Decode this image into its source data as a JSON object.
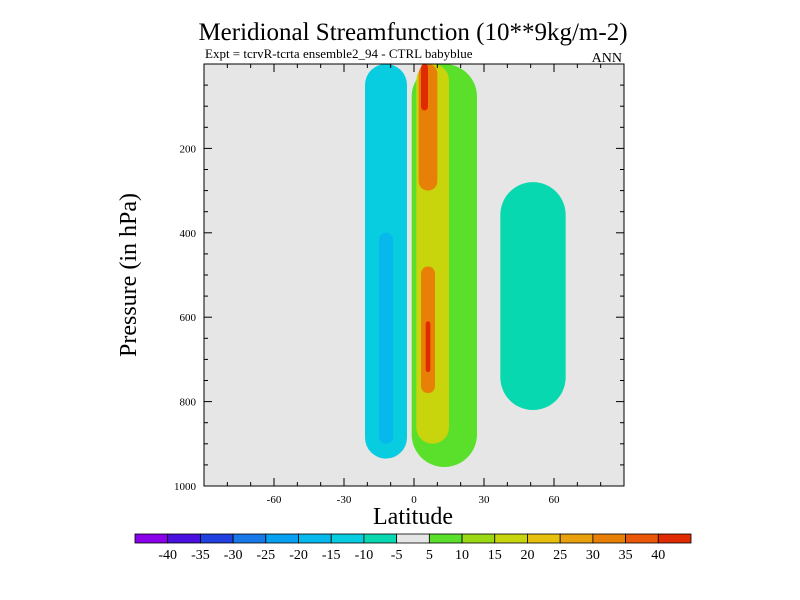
{
  "chart_data": {
    "type": "contour",
    "title": "Meridional Streamfunction (10**9kg/m-2)",
    "subtitle": "Expt = tcrvR-tcrta ensemble2_94 - CTRL babyblue",
    "period_label": "ANN",
    "xlabel": "Latitude",
    "ylabel": "Pressure (in hPa)",
    "xlim": [
      -90,
      90
    ],
    "ylim": [
      1000,
      0
    ],
    "x_ticks": [
      -60,
      -30,
      0,
      30,
      60
    ],
    "y_ticks": [
      200,
      400,
      600,
      800,
      1000
    ],
    "x_tick_labels": [
      "-60",
      "-30",
      "0",
      "30",
      "60"
    ],
    "y_tick_labels": [
      "200",
      "400",
      "600",
      "800",
      "1000"
    ],
    "colorbar": {
      "boundaries": [
        -45,
        -40,
        -35,
        -30,
        -25,
        -20,
        -15,
        -10,
        -5,
        5,
        10,
        15,
        20,
        25,
        30,
        35,
        40,
        45
      ],
      "labels": [
        "-40",
        "-35",
        "-30",
        "-25",
        "-20",
        "-15",
        "-10",
        "-5",
        "5",
        "10",
        "15",
        "20",
        "25",
        "30",
        "35",
        "40"
      ],
      "colors": [
        "#8a00e8",
        "#4a10e0",
        "#2040e0",
        "#1878e8",
        "#08a0f0",
        "#06b8ec",
        "#08cce0",
        "#08d8b0",
        "#e6e6e6",
        "#5ae02a",
        "#9ad814",
        "#c8d40c",
        "#e6c00c",
        "#e8a00c",
        "#e88008",
        "#e85808",
        "#e02a00"
      ]
    },
    "cells": [
      {
        "name": "southern-negative-cell",
        "level": -15,
        "lat": [
          -21,
          -3
        ],
        "p": [
          0,
          935
        ]
      },
      {
        "name": "southern-negative-core",
        "level": -20,
        "lat": [
          -15,
          -9
        ],
        "p": [
          400,
          900
        ]
      },
      {
        "name": "northern-negative-cell",
        "level": -10,
        "lat": [
          37,
          65
        ],
        "p": [
          280,
          820
        ]
      },
      {
        "name": "tropical-positive-outer",
        "level": 5,
        "lat": [
          -1,
          27
        ],
        "p": [
          0,
          955
        ]
      },
      {
        "name": "tropical-positive-band",
        "level": 15,
        "lat": [
          1,
          15
        ],
        "p": [
          0,
          900
        ]
      },
      {
        "name": "upper-positive-core",
        "level": 30,
        "lat": [
          2,
          10
        ],
        "p": [
          0,
          300
        ]
      },
      {
        "name": "lower-positive-core",
        "level": 30,
        "lat": [
          3,
          9
        ],
        "p": [
          480,
          780
        ]
      },
      {
        "name": "upper-max",
        "level": 40,
        "lat": [
          3,
          6
        ],
        "p": [
          0,
          110
        ]
      },
      {
        "name": "lower-max",
        "level": 40,
        "lat": [
          5,
          7
        ],
        "p": [
          610,
          730
        ]
      }
    ]
  }
}
